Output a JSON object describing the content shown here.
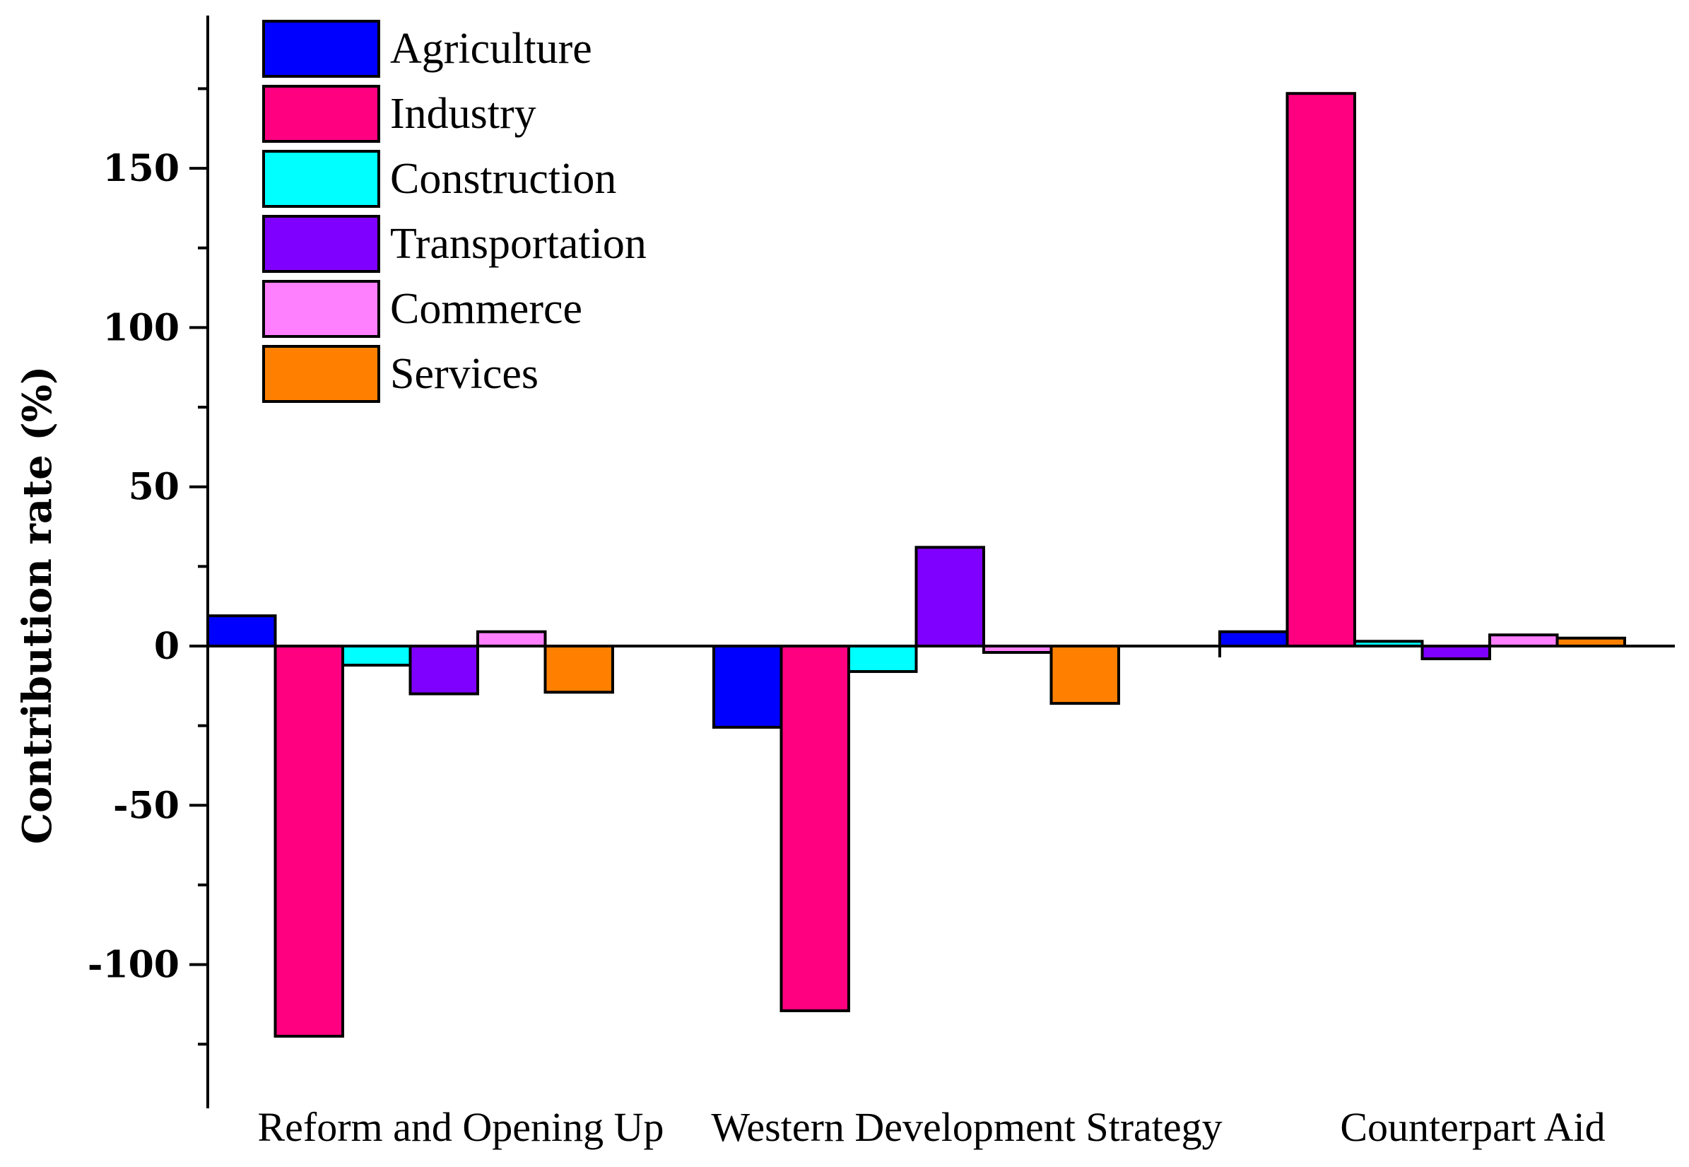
{
  "chart_data": {
    "type": "bar",
    "title": "",
    "xlabel": "",
    "ylabel": "Contribution rate (%)",
    "ylim": [
      -133,
      200
    ],
    "yticks": [
      150,
      100,
      50,
      0,
      -50,
      -100
    ],
    "categories": [
      "Reform and Opening Up",
      "Western Development Strategy",
      "Counterpart Aid"
    ],
    "series": [
      {
        "name": "Agriculture",
        "color": "#0000ff",
        "values": [
          9.5,
          -25.5,
          4.5
        ]
      },
      {
        "name": "Industry",
        "color": "#ff0080",
        "values": [
          -122.5,
          -114.5,
          173.5
        ]
      },
      {
        "name": "Construction",
        "color": "#00ffff",
        "values": [
          -6,
          -8,
          1.5
        ]
      },
      {
        "name": "Transportation",
        "color": "#8000ff",
        "values": [
          -15,
          31,
          -4
        ]
      },
      {
        "name": "Commerce",
        "color": "#ff80ff",
        "values": [
          4.5,
          -2,
          3.5
        ]
      },
      {
        "name": "Services",
        "color": "#ff8000",
        "values": [
          -14.5,
          -18,
          2.5
        ]
      }
    ],
    "legend_position": "top-left",
    "grid": false
  }
}
